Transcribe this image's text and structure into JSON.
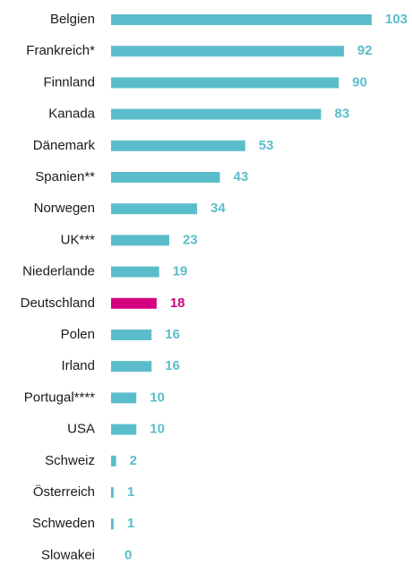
{
  "chart_data": {
    "type": "bar",
    "orientation": "horizontal",
    "categories": [
      "Belgien",
      "Frankreich*",
      "Finnland",
      "Kanada",
      "Dänemark",
      "Spanien**",
      "Norwegen",
      "UK***",
      "Niederlande",
      "Deutschland",
      "Polen",
      "Irland",
      "Portugal****",
      "USA",
      "Schweiz",
      "Österreich",
      "Schweden",
      "Slowakei"
    ],
    "values": [
      103,
      92,
      90,
      83,
      53,
      43,
      34,
      23,
      19,
      18,
      16,
      16,
      10,
      10,
      2,
      1,
      1,
      0
    ],
    "colors": [
      "#5bbdcb",
      "#5bbdcb",
      "#5bbdcb",
      "#5bbdcb",
      "#5bbdcb",
      "#5bbdcb",
      "#5bbdcb",
      "#5bbdcb",
      "#5bbdcb",
      "#d5007f",
      "#5bbdcb",
      "#5bbdcb",
      "#5bbdcb",
      "#5bbdcb",
      "#5bbdcb",
      "#5bbdcb",
      "#5bbdcb",
      "#5bbdcb"
    ]
  }
}
